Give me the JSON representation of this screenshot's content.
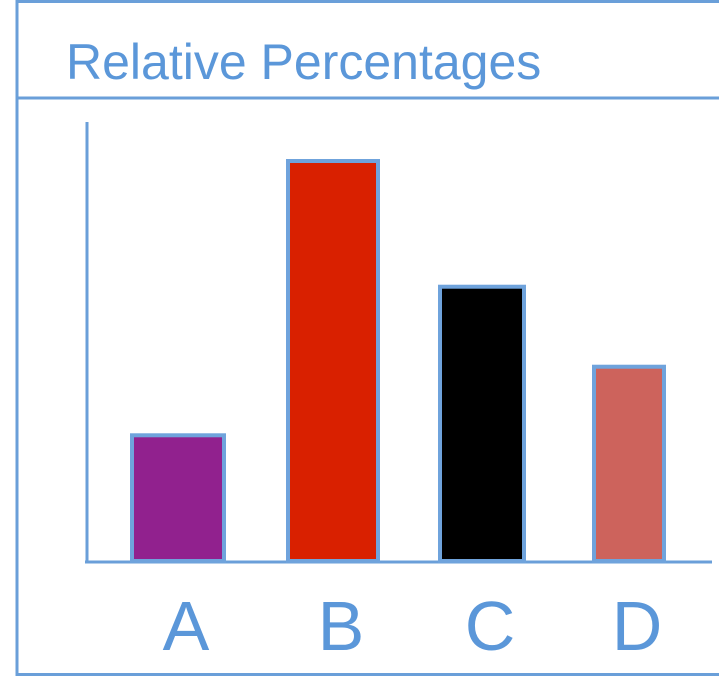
{
  "title": "Relative Percentages",
  "colors": {
    "frame": "#6a9fd9",
    "text": "#5b97d9",
    "bar_outline": "#6fa3dc"
  },
  "chart_data": {
    "type": "bar",
    "title": "Relative Percentages",
    "xlabel": "",
    "ylabel": "",
    "categories": [
      "A",
      "B",
      "C",
      "D"
    ],
    "values": [
      11,
      35,
      24,
      17
    ],
    "ylim": [
      0,
      42
    ],
    "bar_colors": [
      "#91218e",
      "#d92000",
      "#000000",
      "#cd635c"
    ],
    "grid": false,
    "legend": "none"
  }
}
